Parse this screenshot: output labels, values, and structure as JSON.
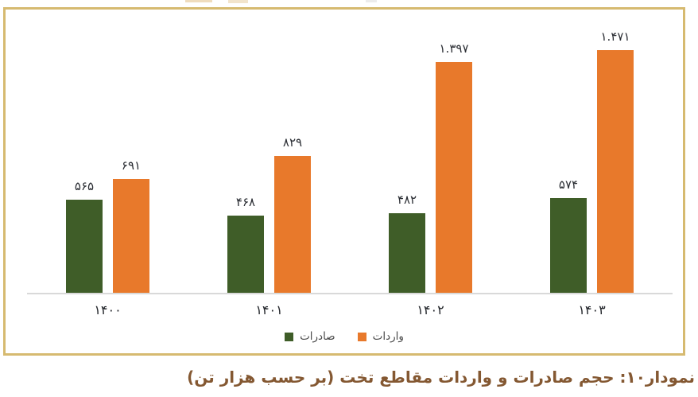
{
  "chart_data": {
    "type": "bar",
    "direction": "rtl",
    "categories": [
      "۱۴۰۰",
      "۱۴۰۱",
      "۱۴۰۲",
      "۱۴۰۳"
    ],
    "series": [
      {
        "name": "صادرات",
        "color": "#3f5d28",
        "values": [
          565,
          468,
          482,
          574
        ],
        "value_labels": [
          "۵۶۵",
          "۴۶۸",
          "۴۸۲",
          "۵۷۴"
        ]
      },
      {
        "name": "واردات",
        "color": "#e8792b",
        "values": [
          691,
          829,
          1397,
          1471
        ],
        "value_labels": [
          "۶۹۱",
          "۸۲۹",
          "۱.۳۹۷",
          "۱.۴۷۱"
        ]
      }
    ],
    "title": "",
    "xlabel": "",
    "ylabel": "",
    "ylim": [
      0,
      1550
    ],
    "grid": false,
    "legend_position": "bottom-center",
    "axis_line_color": "#d9d9d9",
    "value_label_color": "#2a2d33",
    "category_label_color": "#24272c",
    "legend_text_color": "#4a4a4a"
  },
  "frame": {
    "border_color": "#d6ba70",
    "background": "#ffffff"
  },
  "caption": {
    "text": "نمودار۱۰: حجم صادرات و واردات مقاطع تخت (بر حسب هزار تن)",
    "color": "#845832"
  }
}
